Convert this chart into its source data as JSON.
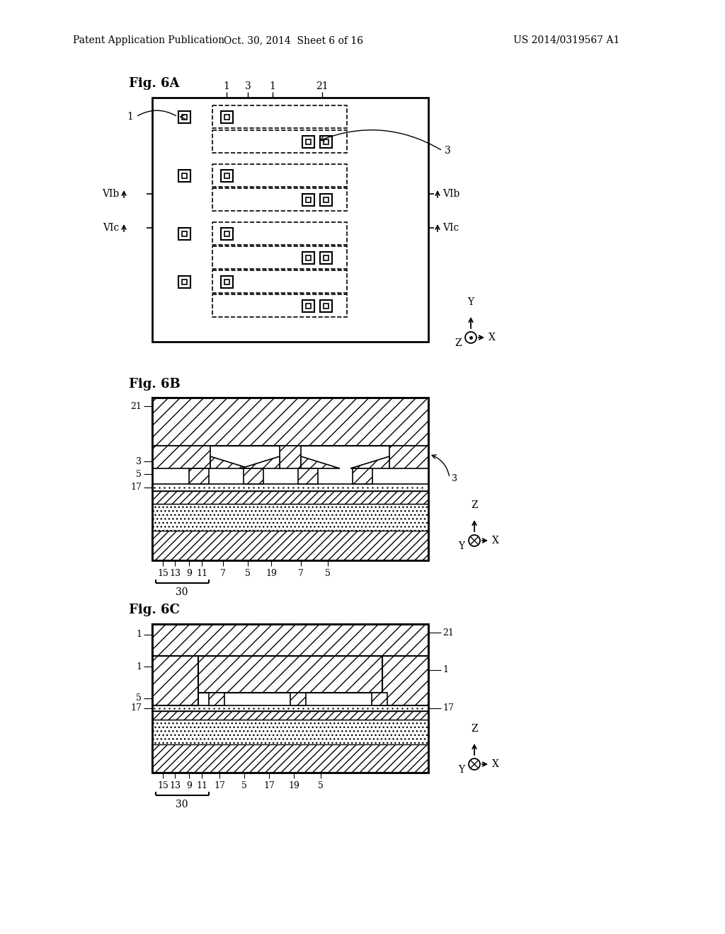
{
  "bg_color": "#ffffff",
  "header_left": "Patent Application Publication",
  "header_mid": "Oct. 30, 2014  Sheet 6 of 16",
  "header_right": "US 2014/0319567 A1"
}
